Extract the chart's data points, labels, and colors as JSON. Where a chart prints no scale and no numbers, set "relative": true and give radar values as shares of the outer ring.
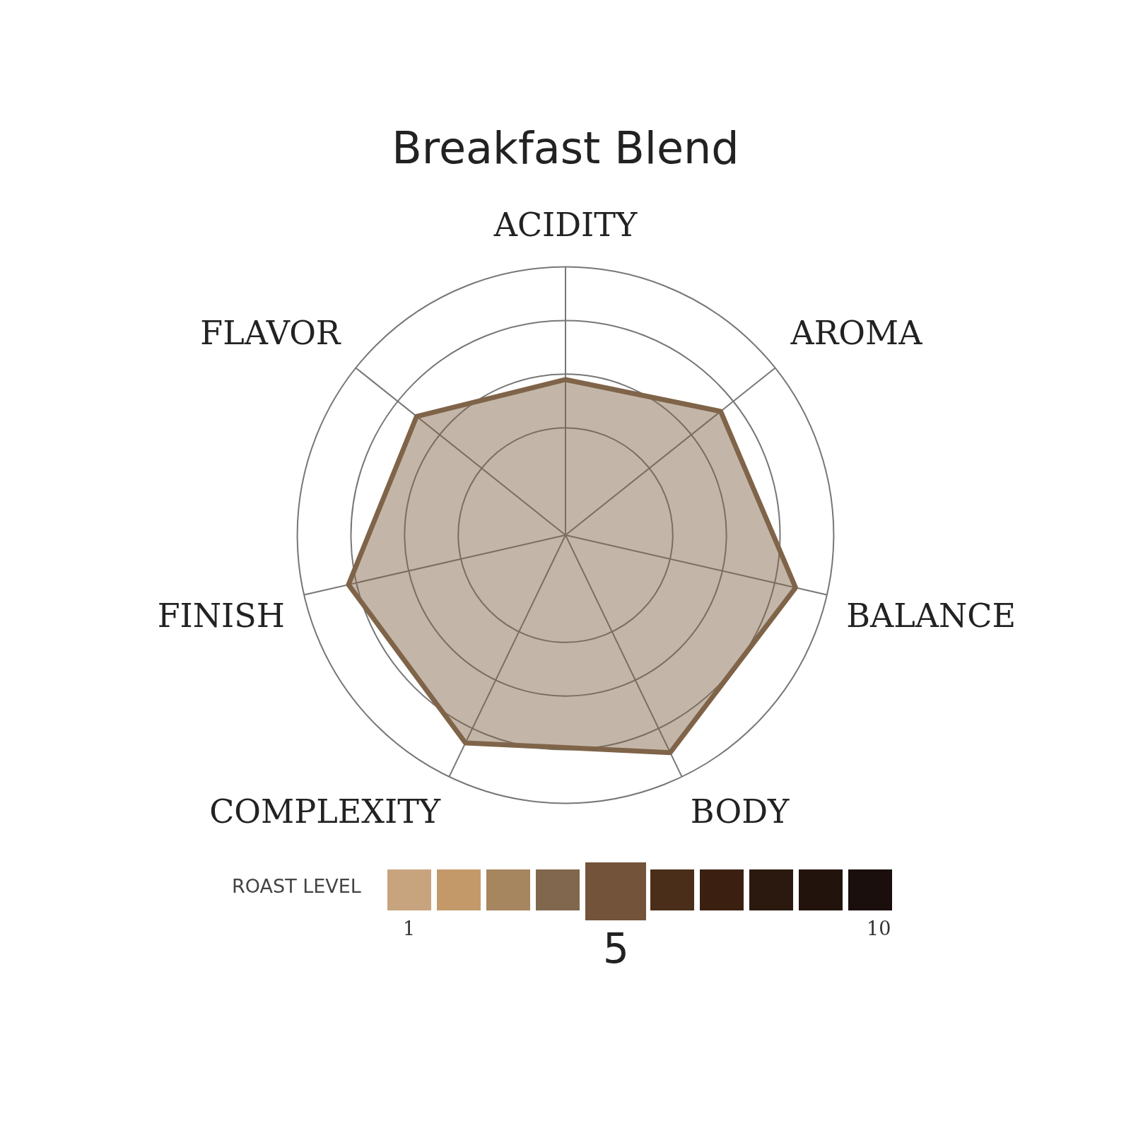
{
  "chart_data": {
    "type": "radar",
    "title": "Breakfast Blend",
    "relative": true,
    "legend": false,
    "grid": true,
    "marker": "none",
    "categories": [
      "ACIDITY",
      "AROMA",
      "BALANCE",
      "BODY",
      "COMPLEXITY",
      "FINISH",
      "FLAVOR"
    ],
    "series": [
      {
        "color": "#7f6449",
        "values": [
          0.58,
          0.74,
          0.88,
          0.9,
          0.86,
          0.83,
          0.71
        ]
      }
    ],
    "annotations": [
      "ROAST LEVEL",
      "1",
      "10",
      "5"
    ]
  }
}
